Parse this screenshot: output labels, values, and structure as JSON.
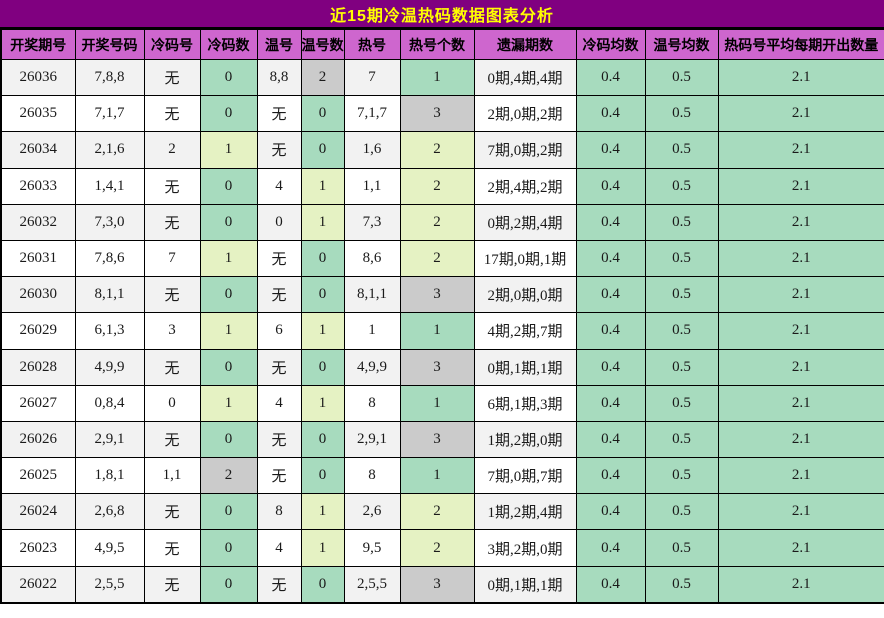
{
  "title": "近15期冷温热码数据图表分析",
  "colors": {
    "title_bg": "#800080",
    "title_text": "#FFFF00",
    "header_bg": "#CE66CE",
    "cell_green": "#A7DBBE",
    "cell_lime": "#E5F2C3",
    "cell_gray": "#CBCBCB",
    "row_alt": "#F2F2F2",
    "border": "#000000"
  },
  "chart_data": {
    "type": "table",
    "title": "近15期冷温热码数据图表分析",
    "columns": [
      "开奖期号",
      "开奖号码",
      "冷码号",
      "冷码数",
      "温号",
      "温号数",
      "热号",
      "热号个数",
      "遗漏期数",
      "冷码均数",
      "温号均数",
      "热码号平均每期开出数量"
    ],
    "rows": [
      {
        "period": "26036",
        "numbers": "7,8,8",
        "cold": "无",
        "cold_count": "0",
        "cold_count_color": "green",
        "warm": "8,8",
        "warm_count": "2",
        "warm_count_color": "gray",
        "hot": "7",
        "hot_count": "1",
        "hot_count_color": "green",
        "miss": "0期,4期,4期",
        "cold_avg": "0.4",
        "warm_avg": "0.5",
        "hot_avg": "2.1"
      },
      {
        "period": "26035",
        "numbers": "7,1,7",
        "cold": "无",
        "cold_count": "0",
        "cold_count_color": "green",
        "warm": "无",
        "warm_count": "0",
        "warm_count_color": "green",
        "hot": "7,1,7",
        "hot_count": "3",
        "hot_count_color": "gray",
        "miss": "2期,0期,2期",
        "cold_avg": "0.4",
        "warm_avg": "0.5",
        "hot_avg": "2.1"
      },
      {
        "period": "26034",
        "numbers": "2,1,6",
        "cold": "2",
        "cold_count": "1",
        "cold_count_color": "lime",
        "warm": "无",
        "warm_count": "0",
        "warm_count_color": "green",
        "hot": "1,6",
        "hot_count": "2",
        "hot_count_color": "lime",
        "miss": "7期,0期,2期",
        "cold_avg": "0.4",
        "warm_avg": "0.5",
        "hot_avg": "2.1"
      },
      {
        "period": "26033",
        "numbers": "1,4,1",
        "cold": "无",
        "cold_count": "0",
        "cold_count_color": "green",
        "warm": "4",
        "warm_count": "1",
        "warm_count_color": "lime",
        "hot": "1,1",
        "hot_count": "2",
        "hot_count_color": "lime",
        "miss": "2期,4期,2期",
        "cold_avg": "0.4",
        "warm_avg": "0.5",
        "hot_avg": "2.1"
      },
      {
        "period": "26032",
        "numbers": "7,3,0",
        "cold": "无",
        "cold_count": "0",
        "cold_count_color": "green",
        "warm": "0",
        "warm_count": "1",
        "warm_count_color": "lime",
        "hot": "7,3",
        "hot_count": "2",
        "hot_count_color": "lime",
        "miss": "0期,2期,4期",
        "cold_avg": "0.4",
        "warm_avg": "0.5",
        "hot_avg": "2.1"
      },
      {
        "period": "26031",
        "numbers": "7,8,6",
        "cold": "7",
        "cold_count": "1",
        "cold_count_color": "lime",
        "warm": "无",
        "warm_count": "0",
        "warm_count_color": "green",
        "hot": "8,6",
        "hot_count": "2",
        "hot_count_color": "lime",
        "miss": "17期,0期,1期",
        "cold_avg": "0.4",
        "warm_avg": "0.5",
        "hot_avg": "2.1"
      },
      {
        "period": "26030",
        "numbers": "8,1,1",
        "cold": "无",
        "cold_count": "0",
        "cold_count_color": "green",
        "warm": "无",
        "warm_count": "0",
        "warm_count_color": "green",
        "hot": "8,1,1",
        "hot_count": "3",
        "hot_count_color": "gray",
        "miss": "2期,0期,0期",
        "cold_avg": "0.4",
        "warm_avg": "0.5",
        "hot_avg": "2.1"
      },
      {
        "period": "26029",
        "numbers": "6,1,3",
        "cold": "3",
        "cold_count": "1",
        "cold_count_color": "lime",
        "warm": "6",
        "warm_count": "1",
        "warm_count_color": "lime",
        "hot": "1",
        "hot_count": "1",
        "hot_count_color": "green",
        "miss": "4期,2期,7期",
        "cold_avg": "0.4",
        "warm_avg": "0.5",
        "hot_avg": "2.1"
      },
      {
        "period": "26028",
        "numbers": "4,9,9",
        "cold": "无",
        "cold_count": "0",
        "cold_count_color": "green",
        "warm": "无",
        "warm_count": "0",
        "warm_count_color": "green",
        "hot": "4,9,9",
        "hot_count": "3",
        "hot_count_color": "gray",
        "miss": "0期,1期,1期",
        "cold_avg": "0.4",
        "warm_avg": "0.5",
        "hot_avg": "2.1"
      },
      {
        "period": "26027",
        "numbers": "0,8,4",
        "cold": "0",
        "cold_count": "1",
        "cold_count_color": "lime",
        "warm": "4",
        "warm_count": "1",
        "warm_count_color": "lime",
        "hot": "8",
        "hot_count": "1",
        "hot_count_color": "green",
        "miss": "6期,1期,3期",
        "cold_avg": "0.4",
        "warm_avg": "0.5",
        "hot_avg": "2.1"
      },
      {
        "period": "26026",
        "numbers": "2,9,1",
        "cold": "无",
        "cold_count": "0",
        "cold_count_color": "green",
        "warm": "无",
        "warm_count": "0",
        "warm_count_color": "green",
        "hot": "2,9,1",
        "hot_count": "3",
        "hot_count_color": "gray",
        "miss": "1期,2期,0期",
        "cold_avg": "0.4",
        "warm_avg": "0.5",
        "hot_avg": "2.1"
      },
      {
        "period": "26025",
        "numbers": "1,8,1",
        "cold": "1,1",
        "cold_count": "2",
        "cold_count_color": "gray",
        "warm": "无",
        "warm_count": "0",
        "warm_count_color": "green",
        "hot": "8",
        "hot_count": "1",
        "hot_count_color": "green",
        "miss": "7期,0期,7期",
        "cold_avg": "0.4",
        "warm_avg": "0.5",
        "hot_avg": "2.1"
      },
      {
        "period": "26024",
        "numbers": "2,6,8",
        "cold": "无",
        "cold_count": "0",
        "cold_count_color": "green",
        "warm": "8",
        "warm_count": "1",
        "warm_count_color": "lime",
        "hot": "2,6",
        "hot_count": "2",
        "hot_count_color": "lime",
        "miss": "1期,2期,4期",
        "cold_avg": "0.4",
        "warm_avg": "0.5",
        "hot_avg": "2.1"
      },
      {
        "period": "26023",
        "numbers": "4,9,5",
        "cold": "无",
        "cold_count": "0",
        "cold_count_color": "green",
        "warm": "4",
        "warm_count": "1",
        "warm_count_color": "lime",
        "hot": "9,5",
        "hot_count": "2",
        "hot_count_color": "lime",
        "miss": "3期,2期,0期",
        "cold_avg": "0.4",
        "warm_avg": "0.5",
        "hot_avg": "2.1"
      },
      {
        "period": "26022",
        "numbers": "2,5,5",
        "cold": "无",
        "cold_count": "0",
        "cold_count_color": "green",
        "warm": "无",
        "warm_count": "0",
        "warm_count_color": "green",
        "hot": "2,5,5",
        "hot_count": "3",
        "hot_count_color": "gray",
        "miss": "0期,1期,1期",
        "cold_avg": "0.4",
        "warm_avg": "0.5",
        "hot_avg": "2.1"
      }
    ]
  }
}
